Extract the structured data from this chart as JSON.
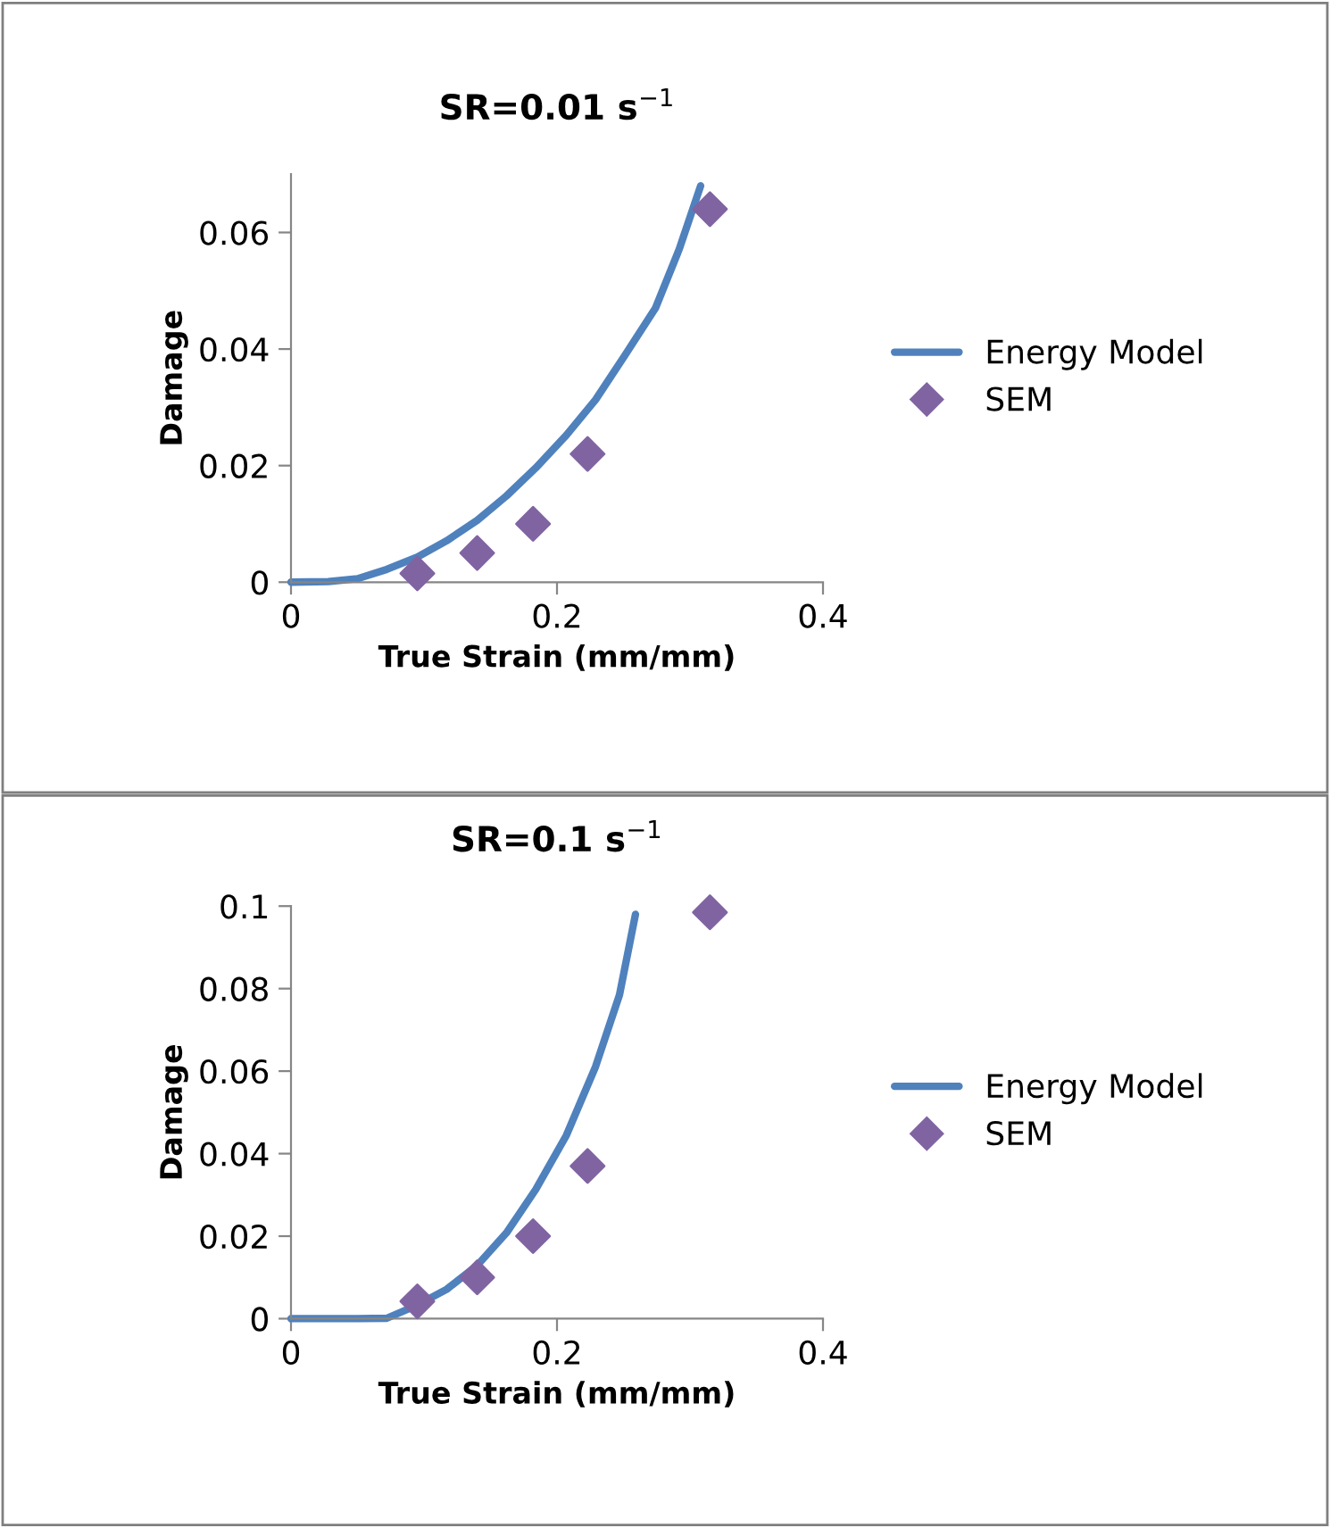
{
  "chart_data": [
    {
      "type": "line",
      "title": "SR=0.01 s$^{−1}$",
      "xlabel": "True Strain (mm/mm)",
      "ylabel": "Damage",
      "xlim": [
        0,
        0.4
      ],
      "xticks": [
        0,
        0.2,
        0.4
      ],
      "ylim": [
        0,
        0.07
      ],
      "yticks": [
        0,
        0.02,
        0.04,
        0.06
      ],
      "grid": false,
      "legend": "right",
      "series": [
        {
          "name": "Energy Model",
          "color": "#4f81bd",
          "marker": "none",
          "line_style": "solid",
          "x": [
            0,
            0.028,
            0.05,
            0.072,
            0.095,
            0.117,
            0.14,
            0.162,
            0.184,
            0.207,
            0.229,
            0.251,
            0.274,
            0.292,
            0.308
          ],
          "values": [
            0,
            0.0001,
            0.0006,
            0.0022,
            0.0043,
            0.0071,
            0.0106,
            0.0148,
            0.0196,
            0.0252,
            0.0313,
            0.0389,
            0.047,
            0.0572,
            0.068
          ]
        },
        {
          "name": "SEM",
          "type": "scatter",
          "color": "#8064a2",
          "marker": "diamond",
          "x": [
            0.095,
            0.14,
            0.182,
            0.223,
            0.315
          ],
          "values": [
            0.0015,
            0.005,
            0.01,
            0.022,
            0.064
          ]
        }
      ]
    },
    {
      "type": "line",
      "title": "SR=0.1 s$^{−1}$",
      "xlabel": "True Strain (mm/mm)",
      "ylabel": "Damage",
      "xlim": [
        0,
        0.4
      ],
      "xticks": [
        0,
        0.2,
        0.4
      ],
      "ylim": [
        0,
        0.1
      ],
      "yticks": [
        0,
        0.02,
        0.04,
        0.06,
        0.08,
        0.1
      ],
      "grid": false,
      "legend": "right",
      "series": [
        {
          "name": "Energy Model",
          "color": "#4f81bd",
          "marker": "none",
          "line_style": "solid",
          "x": [
            0,
            0.028,
            0.05,
            0.072,
            0.095,
            0.117,
            0.14,
            0.162,
            0.184,
            0.207,
            0.229,
            0.247,
            0.259
          ],
          "values": [
            0,
            0,
            0,
            0.0001,
            0.0033,
            0.0071,
            0.0129,
            0.0208,
            0.0313,
            0.0444,
            0.0611,
            0.0785,
            0.098
          ]
        },
        {
          "name": "SEM",
          "type": "scatter",
          "color": "#8064a2",
          "marker": "diamond",
          "x": [
            0.095,
            0.14,
            0.182,
            0.223,
            0.315
          ],
          "values": [
            0.0042,
            0.01,
            0.02,
            0.037,
            0.0985
          ]
        }
      ]
    }
  ]
}
